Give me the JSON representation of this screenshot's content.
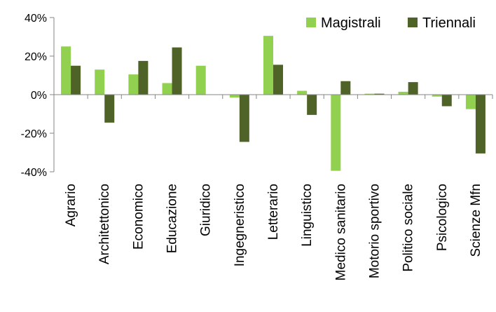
{
  "chart_data": {
    "type": "bar",
    "categories": [
      "Agrario",
      "Architettonico",
      "Economico",
      "Educazione",
      "Giuridico",
      "Ingegneristico",
      "Letterario",
      "Linguistico",
      "Medico sanitario",
      "Motorio sportivo",
      "Politico sociale",
      "Psicologico",
      "Scienze Mfn"
    ],
    "series": [
      {
        "name": "Magistrali",
        "color": "#92d050",
        "values": [
          25,
          13,
          10.5,
          6,
          15,
          -1.5,
          30.5,
          2,
          -39.5,
          0.5,
          1.5,
          -1,
          -7.5
        ]
      },
      {
        "name": "Triennali",
        "color": "#4f6228",
        "values": [
          15,
          -14.5,
          17.5,
          24.5,
          0,
          -24.5,
          15.5,
          -10.5,
          7,
          0.5,
          6.5,
          -6,
          -30.5
        ]
      }
    ],
    "ylim": [
      -40,
      40
    ],
    "yticks": [
      "-40%",
      "-20%",
      "0%",
      "20%",
      "40%"
    ],
    "ytick_values": [
      -40,
      -20,
      0,
      20,
      40
    ],
    "grid": false,
    "legend_position": "top-right",
    "title": "",
    "xlabel": "",
    "ylabel": ""
  }
}
